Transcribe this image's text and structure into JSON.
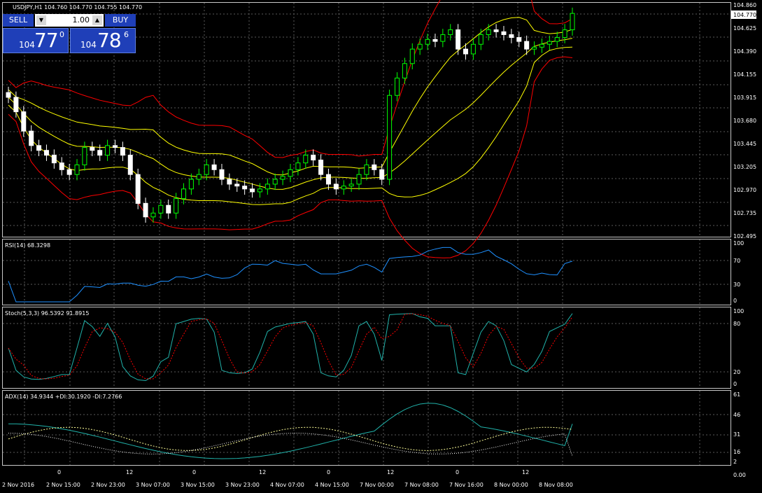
{
  "header": {
    "symbol_line": "USDJPY,H1  104.760 104.770 104.755 104.770"
  },
  "trade_panel": {
    "sell_label": "SELL",
    "buy_label": "BUY",
    "lot_value": "1.00",
    "bid": {
      "prefix": "104",
      "big": "77",
      "sup": "0"
    },
    "ask": {
      "prefix": "104",
      "big": "78",
      "sup": "6"
    }
  },
  "price_axis": {
    "ticks": [
      "104.860",
      "104.625",
      "104.390",
      "104.155",
      "103.915",
      "103.680",
      "103.445",
      "103.205",
      "102.970",
      "102.735",
      "102.495"
    ],
    "current_price_label": "104.770",
    "range": [
      102.455,
      104.88
    ]
  },
  "indicators": {
    "rsi": {
      "label": "RSI(14) 68.3298",
      "ticks": [
        "100",
        "70",
        "30",
        "0"
      ]
    },
    "stoch": {
      "label": "Stoch(5,3,3) 96.5392 91.8915",
      "ticks": [
        "100",
        "80",
        "20",
        "0"
      ]
    },
    "adx": {
      "label": "ADX(14) 34.9344 +DI:30.1920 -DI:7.2766",
      "ticks": [
        "61",
        "46",
        "31",
        "16",
        "2",
        "0.00"
      ]
    }
  },
  "time_axis": {
    "labels": [
      "2 Nov 2016",
      "2 Nov 15:00",
      "2 Nov 23:00",
      "3 Nov 07:00",
      "3 Nov 15:00",
      "3 Nov 23:00",
      "4 Nov 07:00",
      "4 Nov 15:00",
      "7 Nov 00:00",
      "7 Nov 08:00",
      "7 Nov 16:00",
      "8 Nov 00:00",
      "8 Nov 08:00"
    ],
    "hour_markers": [
      "0",
      "12",
      "0",
      "12",
      "0",
      "12",
      "0",
      "12"
    ]
  },
  "colors": {
    "background": "#000000",
    "grid": "#5a5a5a",
    "bull_candle": "#00ff00",
    "bear_candle": "#ffffff",
    "bollinger_outer": "#ff0000",
    "bollinger_inner": "#ffff00",
    "rsi_line": "#1e90ff",
    "stoch_main": "#20b2aa",
    "stoch_signal": "#ff0000",
    "adx_main": "#20b2aa",
    "adx_plus_di": "#ffff99",
    "adx_minus_di": "#ffffff",
    "panel_blue": "#1f3fb8"
  },
  "chart_data": {
    "type": "candlestick",
    "symbol": "USDJPY",
    "timeframe": "H1",
    "ohlc_close_approx": [
      103.9,
      103.75,
      103.55,
      103.4,
      103.35,
      103.3,
      103.22,
      103.15,
      103.1,
      103.2,
      103.38,
      103.35,
      103.3,
      103.4,
      103.38,
      103.3,
      103.1,
      102.8,
      102.66,
      102.7,
      102.78,
      102.7,
      102.85,
      102.95,
      103.05,
      103.1,
      103.2,
      103.15,
      103.05,
      103.0,
      102.98,
      102.95,
      102.92,
      102.95,
      103.0,
      103.05,
      103.08,
      103.15,
      103.22,
      103.3,
      103.25,
      103.1,
      103.0,
      102.95,
      102.98,
      103.0,
      103.1,
      103.2,
      103.15,
      103.05,
      103.92,
      104.1,
      104.25,
      104.4,
      104.45,
      104.5,
      104.48,
      104.55,
      104.6,
      104.4,
      104.35,
      104.45,
      104.55,
      104.6,
      104.58,
      104.55,
      104.52,
      104.48,
      104.4,
      104.42,
      104.45,
      104.48,
      104.52,
      104.6,
      104.77
    ],
    "rsi": {
      "period": 14,
      "last": 68.3298,
      "levels": [
        70,
        30
      ]
    },
    "stochastic": {
      "params": "5,3,3",
      "main_last": 96.5392,
      "signal_last": 91.8915,
      "levels": [
        80,
        20
      ]
    },
    "adx": {
      "period": 14,
      "adx_last": 34.9344,
      "plus_di_last": 30.192,
      "minus_di_last": 7.2766
    }
  }
}
